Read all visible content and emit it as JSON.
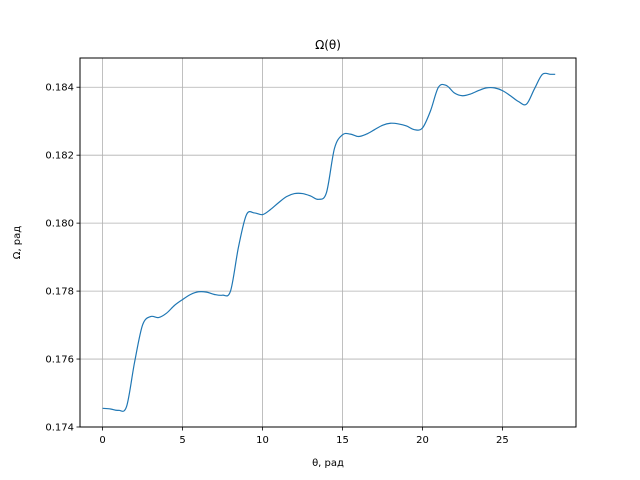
{
  "chart_data": {
    "type": "line",
    "title": "Ω(θ)",
    "xlabel": "θ, рад",
    "ylabel": "Ω, рад",
    "xlim": [
      -1.41,
      29.6
    ],
    "ylim": [
      0.174,
      0.18486
    ],
    "xticks": [
      0,
      5,
      10,
      15,
      20,
      25
    ],
    "xtick_labels": [
      "0",
      "5",
      "10",
      "15",
      "20",
      "25"
    ],
    "yticks": [
      0.174,
      0.176,
      0.178,
      0.18,
      0.182,
      0.184
    ],
    "ytick_labels": [
      "0.174",
      "0.176",
      "0.178",
      "0.180",
      "0.182",
      "0.184"
    ],
    "grid": true,
    "legend": "none",
    "colors": {
      "line": "#1f77b4",
      "grid": "#b0b0b0",
      "axes": "#000000"
    },
    "series": [
      {
        "x": [
          0.0,
          0.5,
          1.0,
          1.5,
          2.0,
          2.5,
          3.0,
          3.5,
          4.0,
          4.5,
          5.0,
          5.5,
          6.0,
          6.5,
          7.0,
          7.5,
          8.0,
          8.5,
          9.0,
          9.5,
          10.0,
          10.5,
          11.0,
          11.5,
          12.0,
          12.5,
          13.0,
          13.5,
          14.0,
          14.5,
          15.0,
          15.5,
          16.0,
          16.5,
          17.0,
          17.5,
          18.0,
          18.5,
          19.0,
          19.5,
          20.0,
          20.5,
          21.0,
          21.5,
          22.0,
          22.5,
          23.0,
          23.5,
          24.0,
          24.5,
          25.0,
          25.5,
          26.0,
          26.5,
          27.0,
          27.5,
          28.0,
          28.3
        ],
        "y": [
          0.17455,
          0.17453,
          0.17449,
          0.1746,
          0.1759,
          0.177,
          0.17725,
          0.17722,
          0.17735,
          0.17758,
          0.17775,
          0.1779,
          0.17798,
          0.17797,
          0.1779,
          0.17788,
          0.178,
          0.1793,
          0.18025,
          0.1803,
          0.18025,
          0.1804,
          0.1806,
          0.18078,
          0.18087,
          0.18087,
          0.1808,
          0.1807,
          0.1809,
          0.1822,
          0.1826,
          0.18262,
          0.18255,
          0.18262,
          0.18275,
          0.18288,
          0.18294,
          0.18292,
          0.18286,
          0.18275,
          0.1828,
          0.1833,
          0.184,
          0.18405,
          0.18383,
          0.18375,
          0.1838,
          0.1839,
          0.18398,
          0.18398,
          0.1839,
          0.18375,
          0.18358,
          0.1835,
          0.18395,
          0.18438,
          0.18438,
          0.18438
        ]
      }
    ]
  }
}
